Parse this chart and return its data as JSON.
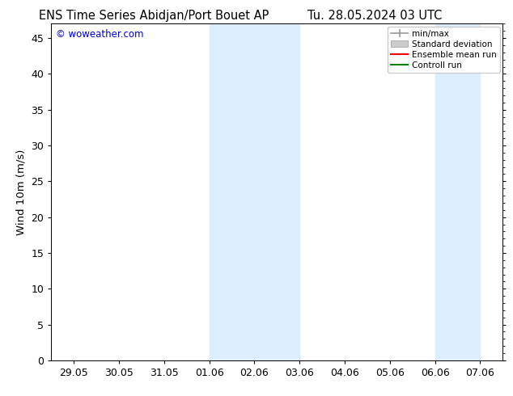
{
  "title_left": "ENS Time Series Abidjan/Port Bouet AP",
  "title_right": "Tu. 28.05.2024 03 UTC",
  "ylabel": "Wind 10m (m/s)",
  "watermark": "© woweather.com",
  "ylim": [
    0,
    47
  ],
  "yticks": [
    0,
    5,
    10,
    15,
    20,
    25,
    30,
    35,
    40,
    45
  ],
  "xtick_labels": [
    "29.05",
    "30.05",
    "31.05",
    "01.06",
    "02.06",
    "03.06",
    "04.06",
    "05.06",
    "06.06",
    "07.06"
  ],
  "xtick_positions": [
    0,
    1,
    2,
    3,
    4,
    5,
    6,
    7,
    8,
    9
  ],
  "shaded_regions": [
    {
      "xmin": 3,
      "xmax": 5,
      "color": "#ddeeff"
    },
    {
      "xmin": 8,
      "xmax": 9,
      "color": "#ddeeff"
    }
  ],
  "legend_items": [
    {
      "label": "min/max",
      "color": "#999999",
      "lw": 1.2,
      "style": "minmax"
    },
    {
      "label": "Standard deviation",
      "color": "#cccccc",
      "lw": 6,
      "style": "band"
    },
    {
      "label": "Ensemble mean run",
      "color": "#ff0000",
      "lw": 1.5,
      "style": "line"
    },
    {
      "label": "Controll run",
      "color": "#008000",
      "lw": 1.5,
      "style": "line"
    }
  ],
  "background_color": "#ffffff",
  "plot_bg_color": "#ffffff",
  "border_color": "#000000",
  "title_fontsize": 10.5,
  "axis_fontsize": 9,
  "watermark_color": "#0000cc",
  "watermark_fontsize": 8.5
}
